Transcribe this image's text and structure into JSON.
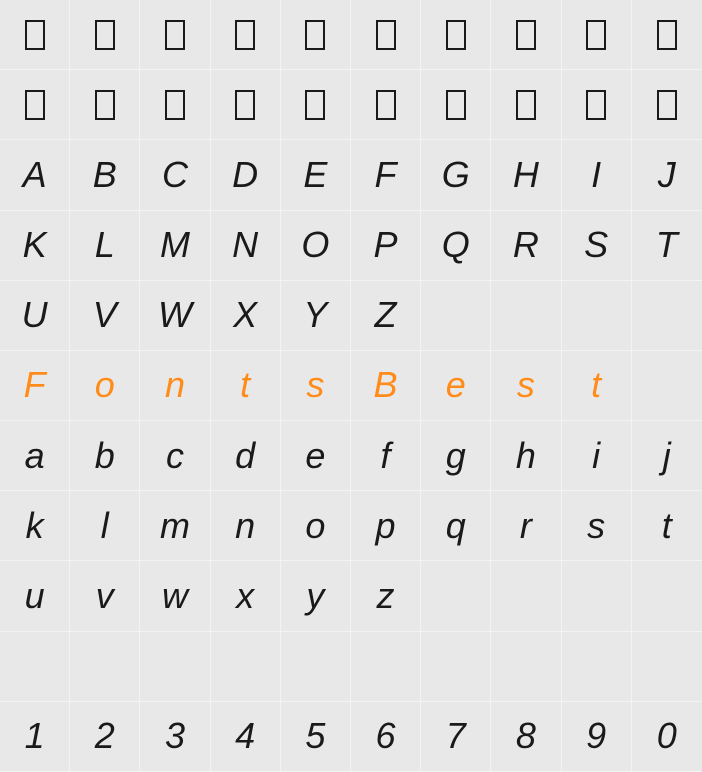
{
  "grid": {
    "cols": 10,
    "rows": 11,
    "background_color": "#e8e8e8",
    "gridline_color": "#f3f3f3",
    "text_color": "#1a1a1a",
    "highlight_color": "#ff8c1a",
    "font_size": 36,
    "font_style": "italic",
    "cells": [
      [
        {
          "t": "tofu"
        },
        {
          "t": "tofu"
        },
        {
          "t": "tofu"
        },
        {
          "t": "tofu"
        },
        {
          "t": "tofu"
        },
        {
          "t": "tofu"
        },
        {
          "t": "tofu"
        },
        {
          "t": "tofu"
        },
        {
          "t": "tofu"
        },
        {
          "t": "tofu"
        }
      ],
      [
        {
          "t": "tofu"
        },
        {
          "t": "tofu"
        },
        {
          "t": "tofu"
        },
        {
          "t": "tofu"
        },
        {
          "t": "tofu"
        },
        {
          "t": "tofu"
        },
        {
          "t": "tofu"
        },
        {
          "t": "tofu"
        },
        {
          "t": "tofu"
        },
        {
          "t": "tofu"
        }
      ],
      [
        {
          "c": "A"
        },
        {
          "c": "B"
        },
        {
          "c": "C"
        },
        {
          "c": "D"
        },
        {
          "c": "E"
        },
        {
          "c": "F"
        },
        {
          "c": "G"
        },
        {
          "c": "H"
        },
        {
          "c": "I"
        },
        {
          "c": "J"
        }
      ],
      [
        {
          "c": "K"
        },
        {
          "c": "L"
        },
        {
          "c": "M"
        },
        {
          "c": "N"
        },
        {
          "c": "O"
        },
        {
          "c": "P"
        },
        {
          "c": "Q"
        },
        {
          "c": "R"
        },
        {
          "c": "S"
        },
        {
          "c": "T"
        }
      ],
      [
        {
          "c": "U"
        },
        {
          "c": "V"
        },
        {
          "c": "W"
        },
        {
          "c": "X"
        },
        {
          "c": "Y"
        },
        {
          "c": "Z"
        },
        {
          "c": ""
        },
        {
          "c": ""
        },
        {
          "c": ""
        },
        {
          "c": ""
        }
      ],
      [
        {
          "c": "F",
          "hl": true
        },
        {
          "c": "o",
          "hl": true
        },
        {
          "c": "n",
          "hl": true
        },
        {
          "c": "t",
          "hl": true
        },
        {
          "c": "s",
          "hl": true
        },
        {
          "c": "B",
          "hl": true
        },
        {
          "c": "e",
          "hl": true
        },
        {
          "c": "s",
          "hl": true
        },
        {
          "c": "t",
          "hl": true
        },
        {
          "c": ""
        }
      ],
      [
        {
          "c": "a"
        },
        {
          "c": "b"
        },
        {
          "c": "c"
        },
        {
          "c": "d"
        },
        {
          "c": "e"
        },
        {
          "c": "f"
        },
        {
          "c": "g"
        },
        {
          "c": "h"
        },
        {
          "c": "i"
        },
        {
          "c": "j"
        }
      ],
      [
        {
          "c": "k"
        },
        {
          "c": "l"
        },
        {
          "c": "m"
        },
        {
          "c": "n"
        },
        {
          "c": "o"
        },
        {
          "c": "p"
        },
        {
          "c": "q"
        },
        {
          "c": "r"
        },
        {
          "c": "s"
        },
        {
          "c": "t"
        }
      ],
      [
        {
          "c": "u"
        },
        {
          "c": "v"
        },
        {
          "c": "w"
        },
        {
          "c": "x"
        },
        {
          "c": "y"
        },
        {
          "c": "z"
        },
        {
          "c": ""
        },
        {
          "c": ""
        },
        {
          "c": ""
        },
        {
          "c": ""
        }
      ],
      [
        {
          "c": ""
        },
        {
          "c": ""
        },
        {
          "c": ""
        },
        {
          "c": ""
        },
        {
          "c": ""
        },
        {
          "c": ""
        },
        {
          "c": ""
        },
        {
          "c": ""
        },
        {
          "c": ""
        },
        {
          "c": ""
        }
      ],
      [
        {
          "c": "1"
        },
        {
          "c": "2"
        },
        {
          "c": "3"
        },
        {
          "c": "4"
        },
        {
          "c": "5"
        },
        {
          "c": "6"
        },
        {
          "c": "7"
        },
        {
          "c": "8"
        },
        {
          "c": "9"
        },
        {
          "c": "0"
        }
      ]
    ]
  }
}
